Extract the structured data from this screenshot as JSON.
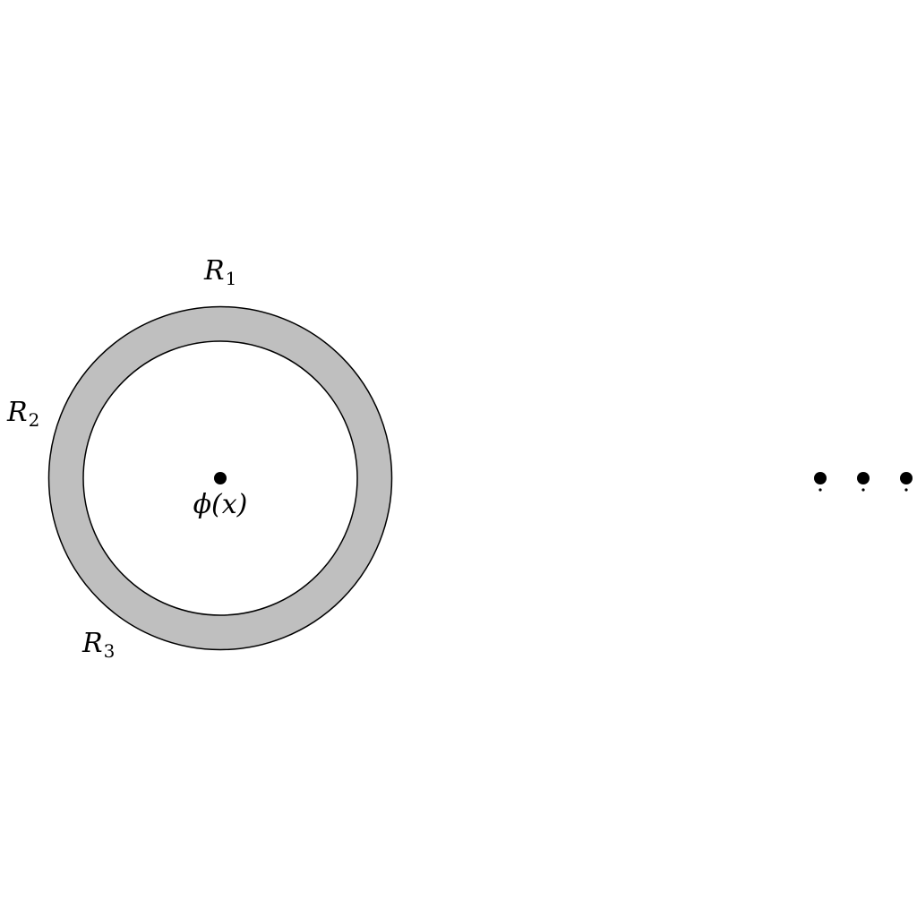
{
  "colors": {
    "background": "#ffffff",
    "annulus_fill": "#bfbfbf",
    "stroke": "#000000",
    "dot": "#000000"
  },
  "labels": {
    "r1": {
      "base": "R",
      "sub": "1"
    },
    "r2": {
      "base": "R",
      "sub": "2"
    },
    "r3": {
      "base": "R",
      "sub": "3"
    },
    "center": "ϕ(x)"
  }
}
